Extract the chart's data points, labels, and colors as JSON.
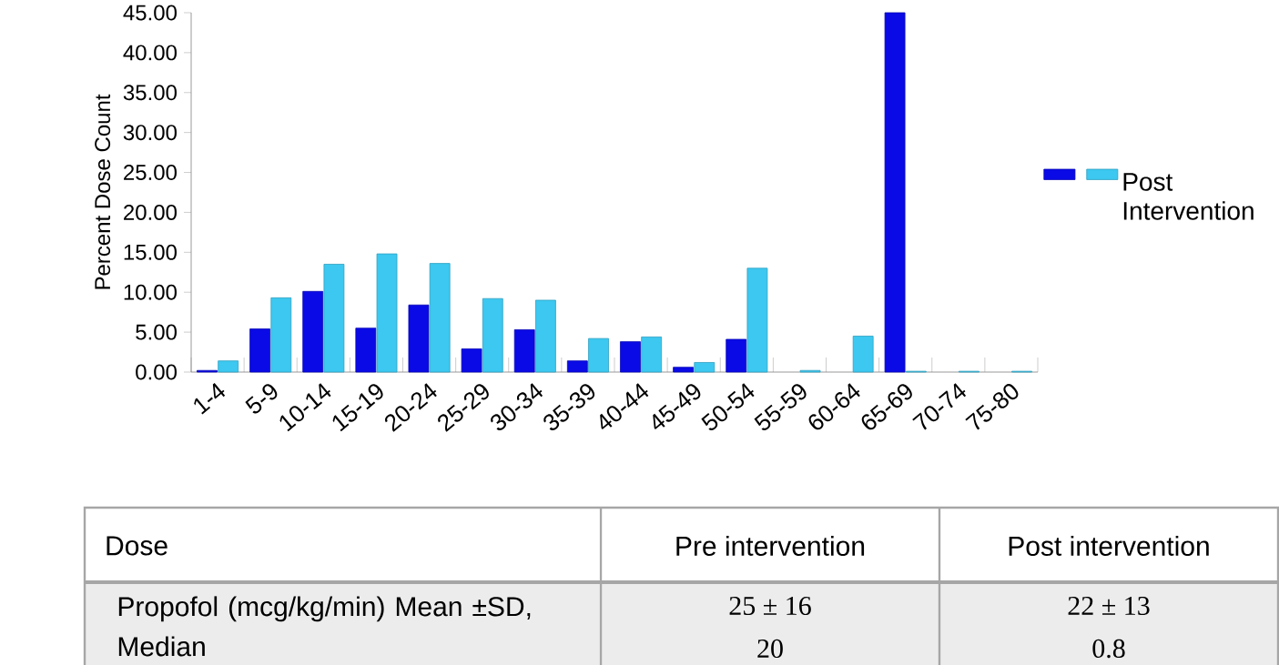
{
  "chart_data": {
    "type": "bar",
    "ylabel": "Percent Dose Count",
    "categories": [
      "1-4",
      "5-9",
      "10-14",
      "15-19",
      "20-24",
      "25-29",
      "30-34",
      "35-39",
      "40-44",
      "45-49",
      "50-54",
      "55-59",
      "60-64",
      "65-69",
      "70-74",
      "75-80"
    ],
    "series": [
      {
        "color": "#0a0ae6",
        "values": [
          0.2,
          5.4,
          10.1,
          5.5,
          8.4,
          2.9,
          5.3,
          1.4,
          3.8,
          0.6,
          4.1,
          null,
          null,
          45,
          null,
          null
        ]
      },
      {
        "name": "Post Intervention",
        "color": "#3cc8f0",
        "values": [
          1.4,
          9.3,
          13.5,
          14.8,
          13.6,
          9.2,
          9.0,
          4.2,
          4.4,
          1.2,
          13.0,
          0.2,
          4.5,
          0.1,
          0.1,
          0.1
        ]
      }
    ],
    "ylim": [
      0,
      45
    ],
    "yticks": [
      {
        "value": 0,
        "label": "0.00"
      },
      {
        "value": 5,
        "label": "5.00"
      },
      {
        "value": 10,
        "label": "10.00"
      },
      {
        "value": 15,
        "label": "15.00"
      },
      {
        "value": 20,
        "label": "20.00"
      },
      {
        "value": 25,
        "label": "25.00"
      },
      {
        "value": 30,
        "label": "30.00"
      },
      {
        "value": 35,
        "label": "35.00"
      },
      {
        "value": 40,
        "label": "40.00"
      },
      {
        "value": 45,
        "label": "45.00"
      }
    ],
    "legend": "right",
    "annotations": [
      "Dose",
      "Pre intervention",
      "Post intervention",
      "Propofol (mcg/kg/min) Mean ±SD, Median",
      "25 ± 16",
      "22 ± 13",
      "20",
      "0.8"
    ]
  }
}
